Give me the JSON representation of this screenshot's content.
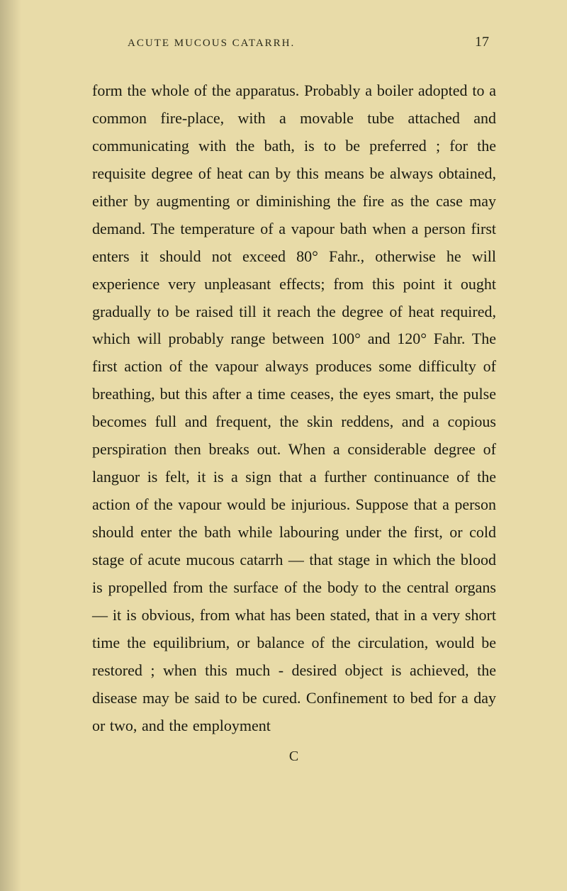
{
  "page": {
    "running_head": "ACUTE MUCOUS CATARRH.",
    "number": "17",
    "body": "form the whole of the apparatus. Probably a boiler adopted to a common fire-place, with a movable tube attached and communicating with the bath, is to be preferred ; for the requisite degree of heat can by this means be always obtained, either by aug­menting or diminishing the fire as the case may demand. The temperature of a vapour bath when a person first enters it should not exceed 80° Fahr., otherwise he will experience very unpleasant effects; from this point it ought gradually to be raised till it reach the degree of heat required, which will probably range between 100° and 120° Fahr. The first action of the vapour always produces some difficulty of breathing, but this after a time ceases, the eyes smart, the pulse becomes full and frequent, the skin reddens, and a copious perspiration then breaks out. When a considerable degree of languor is felt, it is a sign that a further continuance of the action of the vapour would be injurious. Suppose that a person should enter the bath while labouring under the first, or cold stage of acute mucous catarrh — that stage in which the blood is propelled from the surface of the body to the central or­gans — it is obvious, from what has been stated, that in a very short time the equilibrium, or balance of the circulation, would be restored ; when this much - desired object is achieved, the disease may be said to be cured. Confinement to bed for a day or two, and the employment",
    "signature": "C"
  },
  "colors": {
    "background": "#e8dba8",
    "text": "#1a1a10",
    "header_text": "#2a2a1a"
  },
  "typography": {
    "body_fontsize": 22,
    "body_lineheight": 1.77,
    "header_fontsize": 15,
    "pagenum_fontsize": 20
  }
}
